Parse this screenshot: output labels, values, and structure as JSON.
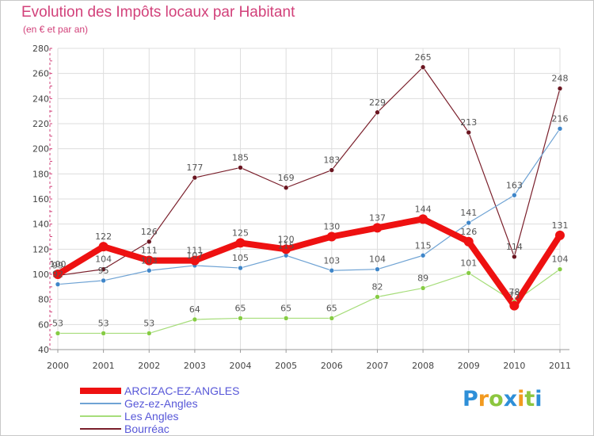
{
  "title": "Evolution des Impôts locaux par Habitant",
  "subtitle": "(en € et par an)",
  "colors": {
    "title": "#d2417a",
    "axis": "#d2417a",
    "grid": "#dddddd",
    "label": "#555555"
  },
  "logo": {
    "letters": [
      "P",
      "r",
      "o",
      "x",
      "i",
      "t",
      "i"
    ],
    "colors": [
      "#2e8fd8",
      "#f29a1f",
      "#8cc63f",
      "#2e8fd8",
      "#f29a1f",
      "#8cc63f",
      "#2e8fd8"
    ]
  },
  "chart_data": {
    "type": "line",
    "title": "Evolution des Impôts locaux par Habitant",
    "subtitle": "(en € et par an)",
    "x": [
      "2000",
      "2001",
      "2002",
      "2003",
      "2004",
      "2005",
      "2006",
      "2007",
      "2008",
      "2009",
      "2010",
      "2011"
    ],
    "ylim": [
      40,
      280
    ],
    "yticks": [
      40,
      60,
      80,
      100,
      120,
      140,
      160,
      180,
      200,
      220,
      240,
      260,
      280
    ],
    "grid": true,
    "legend_position": "bottom-left",
    "series": [
      {
        "name": "Bourréac",
        "color": "#7a1f2b",
        "marker": "#6a1520",
        "width": 1.2,
        "markerSize": 3,
        "values": [
          99,
          104,
          126,
          177,
          185,
          169,
          183,
          229,
          265,
          213,
          114,
          248
        ]
      },
      {
        "name": "Gez-ez-Angles",
        "color": "#6fa3d4",
        "marker": "#3f86c9",
        "width": 1.2,
        "markerSize": 3,
        "values": [
          92,
          95,
          103,
          107,
          105,
          115,
          103,
          104,
          115,
          141,
          163,
          216
        ]
      },
      {
        "name": "Les Angles",
        "color": "#a6dd7a",
        "marker": "#86cc44",
        "width": 1.2,
        "markerSize": 3,
        "values": [
          53,
          53,
          53,
          64,
          65,
          65,
          65,
          82,
          89,
          101,
          78,
          104
        ]
      },
      {
        "name": "ARCIZAC-EZ-ANGLES",
        "color": "#ee1111",
        "marker": "#ee1111",
        "width": 8,
        "markerSize": 6,
        "values": [
          100,
          122,
          111,
          111,
          125,
          120,
          130,
          137,
          144,
          126,
          75,
          131
        ]
      }
    ],
    "data_labels": [
      [
        99,
        104,
        126,
        177,
        185,
        169,
        183,
        229,
        265,
        213,
        114,
        248
      ],
      [
        92,
        95,
        103,
        107,
        105,
        115,
        103,
        104,
        115,
        141,
        163,
        216
      ],
      [
        53,
        53,
        53,
        64,
        65,
        65,
        65,
        82,
        89,
        101,
        78,
        104
      ],
      [
        100,
        122,
        111,
        111,
        125,
        120,
        130,
        137,
        144,
        126,
        75,
        131
      ]
    ]
  },
  "legend": [
    {
      "label": "ARCIZAC-EZ-ANGLES",
      "color": "#ee1111",
      "textColor": "#5757d8",
      "thickness": 8
    },
    {
      "label": "Gez-ez-Angles",
      "color": "#6fa3d4",
      "textColor": "#5757d8",
      "thickness": 2
    },
    {
      "label": "Les Angles",
      "color": "#a6dd7a",
      "textColor": "#5757d8",
      "thickness": 2
    },
    {
      "label": "Bourréac",
      "color": "#7a1f2b",
      "textColor": "#5757d8",
      "thickness": 2
    }
  ]
}
